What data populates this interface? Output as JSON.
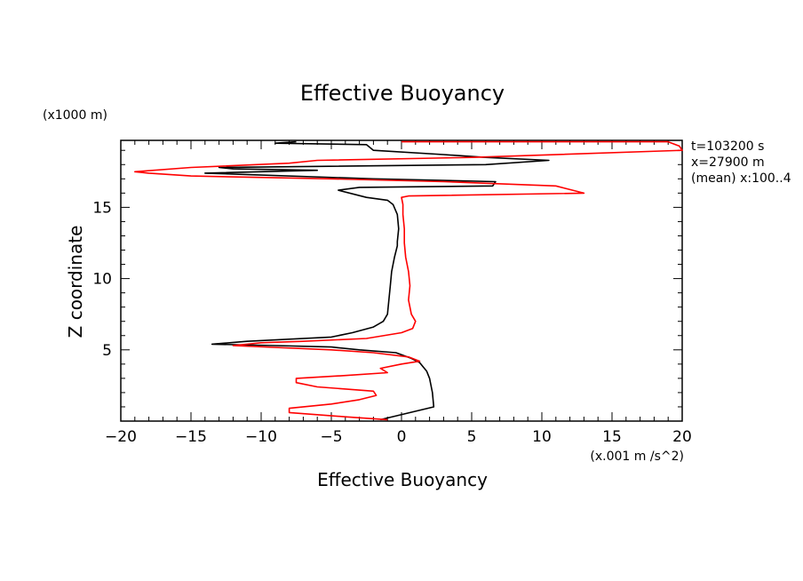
{
  "chart_data": {
    "type": "line",
    "title": "Effective Buoyancy",
    "xlabel": "Effective Buoyancy",
    "ylabel": "Z coordinate",
    "x_unit": "(x.001 m /s^2)",
    "y_unit": "(x1000 m)",
    "xlim": [
      -20,
      20
    ],
    "ylim": [
      0,
      19.7
    ],
    "x_ticks": [
      -20,
      -15,
      -10,
      -5,
      0,
      5,
      10,
      15,
      20
    ],
    "y_ticks": [
      5,
      10,
      15
    ],
    "annotations": [
      "t=103200 s",
      "x=27900 m",
      "(mean) x:100..4"
    ],
    "series": [
      {
        "color": "#000000",
        "points": [
          [
            -1.5,
            0.1
          ],
          [
            2.3,
            1.0
          ],
          [
            2.2,
            2.0
          ],
          [
            2.0,
            3.0
          ],
          [
            1.8,
            3.5
          ],
          [
            1.3,
            4.1
          ],
          [
            0.7,
            4.4
          ],
          [
            -0.4,
            4.8
          ],
          [
            -3.0,
            5.0
          ],
          [
            -5.0,
            5.2
          ],
          [
            -9.0,
            5.3
          ],
          [
            -13.5,
            5.4
          ],
          [
            -11.0,
            5.6
          ],
          [
            -5.0,
            5.9
          ],
          [
            -3.5,
            6.2
          ],
          [
            -2.0,
            6.6
          ],
          [
            -1.3,
            7.0
          ],
          [
            -1.0,
            7.5
          ],
          [
            -0.9,
            8.5
          ],
          [
            -0.8,
            9.5
          ],
          [
            -0.7,
            10.5
          ],
          [
            -0.5,
            11.5
          ],
          [
            -0.3,
            12.3
          ],
          [
            -0.3,
            12.6
          ],
          [
            -0.2,
            13.5
          ],
          [
            -0.3,
            14.5
          ],
          [
            -0.6,
            15.2
          ],
          [
            -1.0,
            15.5
          ],
          [
            -2.5,
            15.7
          ],
          [
            -4.5,
            16.2
          ],
          [
            -3.0,
            16.4
          ],
          [
            6.5,
            16.5
          ],
          [
            6.7,
            16.8
          ],
          [
            -2.0,
            17.0
          ],
          [
            -14.0,
            17.4
          ],
          [
            -6.0,
            17.6
          ],
          [
            -12.0,
            17.7
          ],
          [
            -13.0,
            17.8
          ],
          [
            6.0,
            18.0
          ],
          [
            10.5,
            18.3
          ],
          [
            6.0,
            18.5
          ],
          [
            3.0,
            18.7
          ],
          [
            -2.0,
            19.0
          ],
          [
            -2.5,
            19.4
          ],
          [
            -9.0,
            19.5
          ],
          [
            -7.5,
            19.6
          ]
        ]
      },
      {
        "color": "#ff0000",
        "points": [
          [
            -1.0,
            0.1
          ],
          [
            -4.0,
            0.3
          ],
          [
            -8.0,
            0.6
          ],
          [
            -8.0,
            0.9
          ],
          [
            -5.0,
            1.2
          ],
          [
            -3.0,
            1.5
          ],
          [
            -1.8,
            1.8
          ],
          [
            -2.0,
            2.1
          ],
          [
            -6.0,
            2.4
          ],
          [
            -7.5,
            2.7
          ],
          [
            -7.5,
            3.0
          ],
          [
            -4.0,
            3.2
          ],
          [
            -1.0,
            3.4
          ],
          [
            -1.5,
            3.7
          ],
          [
            0.0,
            4.0
          ],
          [
            1.3,
            4.2
          ],
          [
            0.5,
            4.5
          ],
          [
            -2.0,
            4.8
          ],
          [
            -5.0,
            5.0
          ],
          [
            -12.0,
            5.3
          ],
          [
            -10.0,
            5.5
          ],
          [
            -7.0,
            5.6
          ],
          [
            -2.5,
            5.8
          ],
          [
            0.0,
            6.2
          ],
          [
            0.8,
            6.5
          ],
          [
            1.0,
            7.0
          ],
          [
            0.7,
            7.5
          ],
          [
            0.5,
            8.5
          ],
          [
            0.6,
            9.5
          ],
          [
            0.5,
            10.5
          ],
          [
            0.3,
            11.5
          ],
          [
            0.2,
            12.5
          ],
          [
            0.2,
            13.5
          ],
          [
            0.1,
            14.5
          ],
          [
            0.1,
            15.2
          ],
          [
            0.0,
            15.7
          ],
          [
            0.5,
            15.8
          ],
          [
            13.0,
            16.0
          ],
          [
            11.0,
            16.5
          ],
          [
            3.0,
            16.8
          ],
          [
            -5.0,
            17.0
          ],
          [
            -15.0,
            17.2
          ],
          [
            -18.0,
            17.4
          ],
          [
            -19.0,
            17.5
          ],
          [
            -15.0,
            17.8
          ],
          [
            -8.0,
            18.1
          ],
          [
            -6.0,
            18.3
          ],
          [
            5.0,
            18.5
          ],
          [
            20.0,
            19.0
          ],
          [
            19.8,
            19.3
          ],
          [
            19.0,
            19.6
          ],
          [
            10.0,
            19.6
          ],
          [
            0.0,
            19.6
          ]
        ]
      }
    ]
  }
}
